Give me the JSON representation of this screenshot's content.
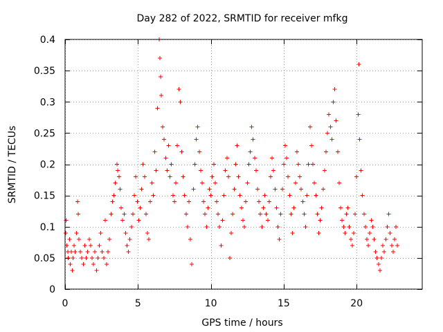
{
  "chart_data": {
    "type": "scatter",
    "title": "Day 282 of 2022, SRMTID for receiver mfkg",
    "xlabel": "GPS time / hours",
    "ylabel": "SRMTID / TECUs",
    "xlim": [
      0,
      24.5
    ],
    "ylim": [
      0,
      0.4
    ],
    "xticks": [
      0,
      5,
      10,
      15,
      20
    ],
    "xtick_labels": [
      "0",
      "5",
      "10",
      "15",
      "20"
    ],
    "yticks": [
      0,
      0.05,
      0.1,
      0.15,
      0.2,
      0.25,
      0.3,
      0.35,
      0.4
    ],
    "ytick_labels": [
      "0",
      "0.05",
      "0.1",
      "0.15",
      "0.2",
      "0.25",
      "0.3",
      "0.35",
      "0.4"
    ],
    "grid": true,
    "marker": "plus",
    "color": "#ff0000",
    "series": [
      {
        "name": "SRMTID",
        "points": [
          [
            0.05,
            0.09
          ],
          [
            0.08,
            0.11
          ],
          [
            0.12,
            0.07
          ],
          [
            0.18,
            0.06
          ],
          [
            0.22,
            0.05
          ],
          [
            0.3,
            0.08
          ],
          [
            0.35,
            0.04
          ],
          [
            0.42,
            0.06
          ],
          [
            0.5,
            0.03
          ],
          [
            0.55,
            0.05
          ],
          [
            0.62,
            0.07
          ],
          [
            0.7,
            0.06
          ],
          [
            0.78,
            0.09
          ],
          [
            0.85,
            0.14
          ],
          [
            0.9,
            0.12
          ],
          [
            0.95,
            0.08
          ],
          [
            1.05,
            0.06
          ],
          [
            1.15,
            0.05
          ],
          [
            1.25,
            0.04
          ],
          [
            1.35,
            0.07
          ],
          [
            1.45,
            0.05
          ],
          [
            1.55,
            0.06
          ],
          [
            1.65,
            0.08
          ],
          [
            1.75,
            0.07
          ],
          [
            1.85,
            0.05
          ],
          [
            1.95,
            0.04
          ],
          [
            2.05,
            0.06
          ],
          [
            2.15,
            0.03
          ],
          [
            2.25,
            0.05
          ],
          [
            2.35,
            0.07
          ],
          [
            2.45,
            0.09
          ],
          [
            2.55,
            0.06
          ],
          [
            2.65,
            0.05
          ],
          [
            2.75,
            0.11
          ],
          [
            2.85,
            0.04
          ],
          [
            2.95,
            0.06
          ],
          [
            3.05,
            0.08
          ],
          [
            3.15,
            0.12
          ],
          [
            3.25,
            0.14
          ],
          [
            3.35,
            0.15
          ],
          [
            3.45,
            0.17
          ],
          [
            3.55,
            0.2
          ],
          [
            3.62,
            0.19
          ],
          [
            3.7,
            0.18
          ],
          [
            3.78,
            0.16
          ],
          [
            3.85,
            0.13
          ],
          [
            3.95,
            0.11
          ],
          [
            4.05,
            0.12
          ],
          [
            4.15,
            0.09
          ],
          [
            4.25,
            0.07
          ],
          [
            4.35,
            0.06
          ],
          [
            4.45,
            0.08
          ],
          [
            4.55,
            0.1
          ],
          [
            4.65,
            0.12
          ],
          [
            4.75,
            0.15
          ],
          [
            4.85,
            0.18
          ],
          [
            4.95,
            0.14
          ],
          [
            5.05,
            0.11
          ],
          [
            5.15,
            0.13
          ],
          [
            5.25,
            0.16
          ],
          [
            5.35,
            0.2
          ],
          [
            5.45,
            0.18
          ],
          [
            5.55,
            0.12
          ],
          [
            5.65,
            0.09
          ],
          [
            5.75,
            0.08
          ],
          [
            5.85,
            0.14
          ],
          [
            5.95,
            0.17
          ],
          [
            6.05,
            0.15
          ],
          [
            6.15,
            0.22
          ],
          [
            6.25,
            0.19
          ],
          [
            6.35,
            0.29
          ],
          [
            6.45,
            0.4
          ],
          [
            6.5,
            0.37
          ],
          [
            6.55,
            0.34
          ],
          [
            6.6,
            0.31
          ],
          [
            6.7,
            0.26
          ],
          [
            6.8,
            0.24
          ],
          [
            6.9,
            0.21
          ],
          [
            7.0,
            0.19
          ],
          [
            7.1,
            0.23
          ],
          [
            7.2,
            0.18
          ],
          [
            7.3,
            0.2
          ],
          [
            7.4,
            0.15
          ],
          [
            7.5,
            0.14
          ],
          [
            7.6,
            0.17
          ],
          [
            7.7,
            0.23
          ],
          [
            7.8,
            0.32
          ],
          [
            7.9,
            0.3
          ],
          [
            8.0,
            0.22
          ],
          [
            8.1,
            0.18
          ],
          [
            8.2,
            0.15
          ],
          [
            8.3,
            0.12
          ],
          [
            8.4,
            0.1
          ],
          [
            8.5,
            0.14
          ],
          [
            8.6,
            0.08
          ],
          [
            8.7,
            0.04
          ],
          [
            8.8,
            0.16
          ],
          [
            8.9,
            0.2
          ],
          [
            9.0,
            0.24
          ],
          [
            9.1,
            0.26
          ],
          [
            9.2,
            0.22
          ],
          [
            9.3,
            0.19
          ],
          [
            9.4,
            0.17
          ],
          [
            9.5,
            0.14
          ],
          [
            9.6,
            0.12
          ],
          [
            9.7,
            0.1
          ],
          [
            9.8,
            0.13
          ],
          [
            9.9,
            0.16
          ],
          [
            10.0,
            0.15
          ],
          [
            10.1,
            0.18
          ],
          [
            10.2,
            0.2
          ],
          [
            10.3,
            0.17
          ],
          [
            10.4,
            0.14
          ],
          [
            10.5,
            0.12
          ],
          [
            10.6,
            0.1
          ],
          [
            10.7,
            0.07
          ],
          [
            10.8,
            0.11
          ],
          [
            10.9,
            0.15
          ],
          [
            11.0,
            0.19
          ],
          [
            11.1,
            0.21
          ],
          [
            11.2,
            0.18
          ],
          [
            11.3,
            0.05
          ],
          [
            11.4,
            0.09
          ],
          [
            11.5,
            0.12
          ],
          [
            11.6,
            0.16
          ],
          [
            11.7,
            0.2
          ],
          [
            11.8,
            0.23
          ],
          [
            11.9,
            0.18
          ],
          [
            12.0,
            0.15
          ],
          [
            12.1,
            0.13
          ],
          [
            12.2,
            0.11
          ],
          [
            12.3,
            0.1
          ],
          [
            12.4,
            0.14
          ],
          [
            12.5,
            0.17
          ],
          [
            12.6,
            0.2
          ],
          [
            12.7,
            0.22
          ],
          [
            12.8,
            0.26
          ],
          [
            12.9,
            0.24
          ],
          [
            13.0,
            0.21
          ],
          [
            13.1,
            0.19
          ],
          [
            13.2,
            0.16
          ],
          [
            13.3,
            0.14
          ],
          [
            13.4,
            0.12
          ],
          [
            13.5,
            0.1
          ],
          [
            13.6,
            0.13
          ],
          [
            13.7,
            0.15
          ],
          [
            13.8,
            0.12
          ],
          [
            13.9,
            0.11
          ],
          [
            14.0,
            0.14
          ],
          [
            14.1,
            0.18
          ],
          [
            14.2,
            0.21
          ],
          [
            14.3,
            0.19
          ],
          [
            14.4,
            0.16
          ],
          [
            14.5,
            0.13
          ],
          [
            14.6,
            0.1
          ],
          [
            14.7,
            0.08
          ],
          [
            14.8,
            0.12
          ],
          [
            14.9,
            0.16
          ],
          [
            15.0,
            0.2
          ],
          [
            15.1,
            0.23
          ],
          [
            15.2,
            0.21
          ],
          [
            15.3,
            0.18
          ],
          [
            15.4,
            0.15
          ],
          [
            15.5,
            0.12
          ],
          [
            15.6,
            0.09
          ],
          [
            15.7,
            0.13
          ],
          [
            15.8,
            0.17
          ],
          [
            15.9,
            0.22
          ],
          [
            16.0,
            0.2
          ],
          [
            16.1,
            0.18
          ],
          [
            16.2,
            0.16
          ],
          [
            16.3,
            0.14
          ],
          [
            16.4,
            0.12
          ],
          [
            16.5,
            0.1
          ],
          [
            16.6,
            0.15
          ],
          [
            16.7,
            0.2
          ],
          [
            16.8,
            0.26
          ],
          [
            16.9,
            0.23
          ],
          [
            17.0,
            0.2
          ],
          [
            17.1,
            0.17
          ],
          [
            17.2,
            0.15
          ],
          [
            17.3,
            0.12
          ],
          [
            17.4,
            0.09
          ],
          [
            17.5,
            0.11
          ],
          [
            17.6,
            0.13
          ],
          [
            17.7,
            0.16
          ],
          [
            17.8,
            0.19
          ],
          [
            17.9,
            0.22
          ],
          [
            18.0,
            0.25
          ],
          [
            18.1,
            0.28
          ],
          [
            18.2,
            0.26
          ],
          [
            18.3,
            0.24
          ],
          [
            18.4,
            0.3
          ],
          [
            18.5,
            0.32
          ],
          [
            18.6,
            0.27
          ],
          [
            18.7,
            0.22
          ],
          [
            18.8,
            0.17
          ],
          [
            18.9,
            0.13
          ],
          [
            19.0,
            0.11
          ],
          [
            19.1,
            0.1
          ],
          [
            19.2,
            0.09
          ],
          [
            19.3,
            0.12
          ],
          [
            19.4,
            0.13
          ],
          [
            19.5,
            0.1
          ],
          [
            19.6,
            0.08
          ],
          [
            19.7,
            0.07
          ],
          [
            19.8,
            0.09
          ],
          [
            19.9,
            0.12
          ],
          [
            20.0,
            0.18
          ],
          [
            20.1,
            0.28
          ],
          [
            20.15,
            0.36
          ],
          [
            20.2,
            0.24
          ],
          [
            20.3,
            0.19
          ],
          [
            20.4,
            0.15
          ],
          [
            20.5,
            0.12
          ],
          [
            20.6,
            0.1
          ],
          [
            20.7,
            0.08
          ],
          [
            20.8,
            0.07
          ],
          [
            20.9,
            0.09
          ],
          [
            21.0,
            0.11
          ],
          [
            21.1,
            0.1
          ],
          [
            21.2,
            0.08
          ],
          [
            21.3,
            0.06
          ],
          [
            21.4,
            0.05
          ],
          [
            21.5,
            0.04
          ],
          [
            21.6,
            0.03
          ],
          [
            21.7,
            0.05
          ],
          [
            21.8,
            0.07
          ],
          [
            21.9,
            0.06
          ],
          [
            22.0,
            0.08
          ],
          [
            22.1,
            0.1
          ],
          [
            22.2,
            0.12
          ],
          [
            22.3,
            0.09
          ],
          [
            22.4,
            0.07
          ],
          [
            22.5,
            0.06
          ],
          [
            22.6,
            0.08
          ],
          [
            22.7,
            0.1
          ],
          [
            22.8,
            0.07
          ]
        ]
      }
    ]
  }
}
